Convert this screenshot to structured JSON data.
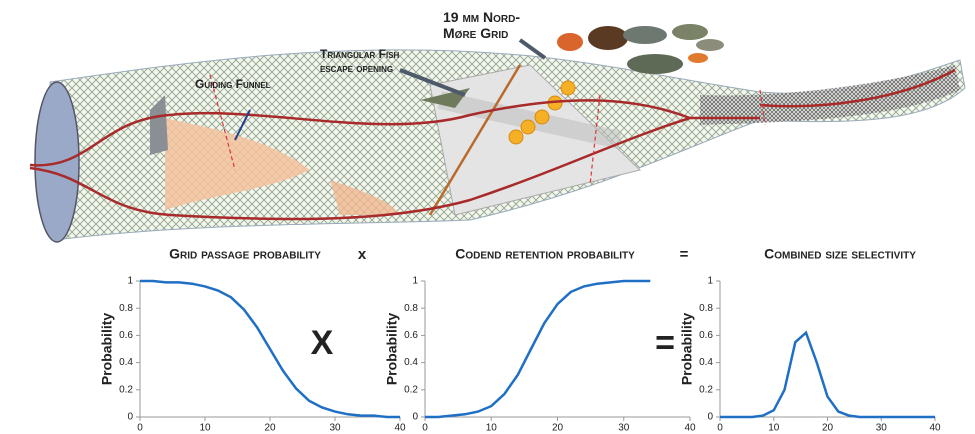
{
  "diagram": {
    "labels": [
      {
        "lines": [
          "Guiding Funnel"
        ]
      },
      {
        "lines": [
          "Triangular Fish",
          "escape opening"
        ]
      },
      {
        "lines": [
          "19 mm Nord-",
          "Møre Grid"
        ]
      }
    ],
    "operators": {
      "header": [
        "x",
        "="
      ],
      "plot": [
        "X",
        "="
      ]
    }
  },
  "chart_data": [
    {
      "type": "line",
      "title": "Grid passage probability",
      "ylabel": "Probability",
      "x": [
        0,
        2,
        4,
        6,
        8,
        10,
        12,
        14,
        16,
        18,
        20,
        22,
        24,
        26,
        28,
        30,
        32,
        34,
        36,
        38,
        40
      ],
      "series": [
        {
          "color": "#1f6fc5",
          "values": [
            1.0,
            1.0,
            0.99,
            0.99,
            0.98,
            0.96,
            0.93,
            0.88,
            0.79,
            0.66,
            0.5,
            0.34,
            0.21,
            0.12,
            0.07,
            0.04,
            0.02,
            0.01,
            0.01,
            0.0,
            0.0
          ]
        }
      ],
      "xlim": [
        0,
        40
      ],
      "ylim": [
        0,
        1
      ],
      "xticks": [
        0,
        10,
        20,
        30,
        40
      ],
      "yticks": [
        0,
        0.2,
        0.4,
        0.6,
        0.8,
        1
      ]
    },
    {
      "type": "line",
      "title": "Codend retention probability",
      "ylabel": "Probability",
      "x": [
        0,
        2,
        4,
        6,
        8,
        10,
        12,
        14,
        16,
        18,
        20,
        22,
        24,
        26,
        28,
        30,
        32,
        34,
        36,
        38,
        40
      ],
      "series": [
        {
          "color": "#1f6fc5",
          "values": [
            0.0,
            0.0,
            0.01,
            0.02,
            0.04,
            0.08,
            0.17,
            0.31,
            0.5,
            0.69,
            0.83,
            0.92,
            0.96,
            0.98,
            0.99,
            1.0,
            1.0,
            1.0,
            null,
            null,
            null
          ]
        }
      ],
      "xlim": [
        0,
        40
      ],
      "ylim": [
        0,
        1
      ],
      "xticks": [
        0,
        10,
        20,
        30,
        40
      ],
      "yticks": [
        0,
        0.2,
        0.4,
        0.6,
        0.8,
        1
      ]
    },
    {
      "type": "line",
      "title": "Combined size selectivity",
      "ylabel": "Probability",
      "x": [
        0,
        2,
        4,
        6,
        8,
        10,
        12,
        14,
        16,
        18,
        20,
        22,
        24,
        26,
        28,
        30,
        32,
        34,
        36,
        38,
        40
      ],
      "series": [
        {
          "color": "#1f6fc5",
          "values": [
            0,
            0,
            0,
            0,
            0.01,
            0.05,
            0.2,
            0.55,
            0.62,
            0.4,
            0.15,
            0.04,
            0.01,
            0,
            0,
            0,
            0,
            0,
            0,
            0,
            0
          ]
        }
      ],
      "xlim": [
        0,
        40
      ],
      "ylim": [
        0,
        1
      ],
      "xticks": [
        0,
        10,
        20,
        30,
        40
      ],
      "yticks": [
        0,
        0.2,
        0.4,
        0.6,
        0.8,
        1
      ]
    }
  ]
}
